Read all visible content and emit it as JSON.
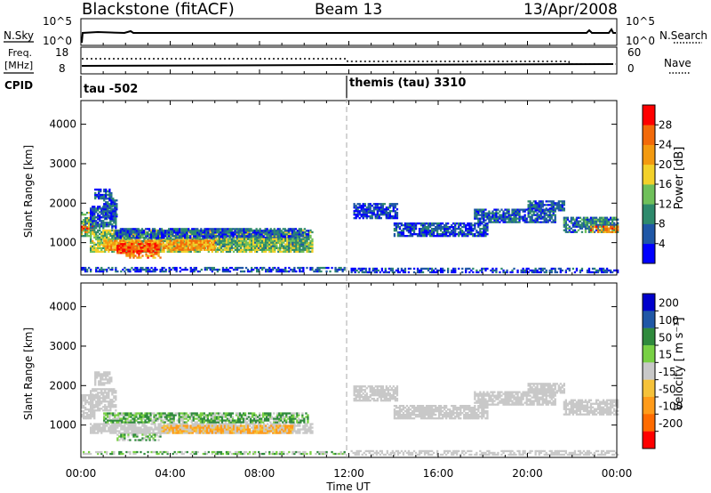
{
  "header": {
    "title": "Blackstone (fitACF)",
    "beam": "Beam 13",
    "date": "13/Apr/2008"
  },
  "noise_panel": {
    "left_label": "N.Sky",
    "left_ticks": [
      "10^5",
      "10^0"
    ],
    "right_ticks": [
      "10^5",
      "10^0"
    ],
    "right_label": "N.Search"
  },
  "freq_panel": {
    "left_label_1": "Freq.",
    "left_label_2": "[MHz]",
    "left_ticks": [
      "18",
      "8"
    ],
    "right_ticks": [
      "60",
      "0"
    ],
    "right_label": "Nave"
  },
  "cpid_panel": {
    "label": "CPID",
    "mode_1": "tau -502",
    "mode_2": "themis (tau) 3310"
  },
  "colors": {
    "power_scale": [
      "#0000ff",
      "#1f57a6",
      "#2e8a6c",
      "#6fc05a",
      "#f3d12a",
      "#f39a10",
      "#f26a0a",
      "#ff0000"
    ],
    "velocity_scale": [
      "#ff0000",
      "#ff6b00",
      "#ff9b1a",
      "#f5c23a",
      "#c8c8c8",
      "#78d044",
      "#2f8a3c",
      "#1f57a6",
      "#0000cc"
    ],
    "ground_scatter": "#c8c8c8"
  },
  "chart_data": [
    {
      "type": "heatmap",
      "name": "Power",
      "title": "",
      "ylabel": "Slant Range [km]",
      "ylim": [
        180,
        4600
      ],
      "y_ticks": [
        1000,
        2000,
        3000,
        4000
      ],
      "xlim": [
        0,
        24
      ],
      "colorbar": {
        "label": "Power [dB]",
        "ticks": [
          "4",
          "8",
          "12",
          "16",
          "20",
          "24",
          "28"
        ],
        "range": [
          0,
          30
        ]
      },
      "regions": [
        {
          "t0": 0.0,
          "t1": 0.6,
          "r0": 1150,
          "r1": 1750,
          "value": 12
        },
        {
          "t0": 0.0,
          "t1": 0.5,
          "r0": 1250,
          "r1": 1400,
          "value": 24
        },
        {
          "t0": 0.6,
          "t1": 1.4,
          "r0": 2100,
          "r1": 2350,
          "value": 5
        },
        {
          "t0": 0.4,
          "t1": 1.6,
          "r0": 1350,
          "r1": 1900,
          "value": 6
        },
        {
          "t0": 1.0,
          "t1": 1.6,
          "r0": 1600,
          "r1": 2100,
          "value": 6
        },
        {
          "t0": 0.4,
          "t1": 10.4,
          "r0": 750,
          "r1": 1300,
          "value": 14
        },
        {
          "t0": 1.5,
          "t1": 10.2,
          "r0": 1100,
          "r1": 1350,
          "value": 6
        },
        {
          "t0": 1.0,
          "t1": 6.0,
          "r0": 800,
          "r1": 1050,
          "value": 21
        },
        {
          "t0": 1.6,
          "t1": 3.6,
          "r0": 720,
          "r1": 980,
          "value": 26
        },
        {
          "t0": 2.0,
          "t1": 3.6,
          "r0": 600,
          "r1": 720,
          "value": 22
        },
        {
          "t0": 6.0,
          "t1": 10.2,
          "r0": 800,
          "r1": 1100,
          "value": 12
        },
        {
          "t0": 0.0,
          "t1": 11.8,
          "r0": 250,
          "r1": 350,
          "value": 5
        },
        {
          "t0": 12.2,
          "t1": 14.2,
          "r0": 1600,
          "r1": 2000,
          "value": 4
        },
        {
          "t0": 14.0,
          "t1": 18.2,
          "r0": 1150,
          "r1": 1500,
          "value": 5
        },
        {
          "t0": 17.6,
          "t1": 21.2,
          "r0": 1500,
          "r1": 1850,
          "value": 6
        },
        {
          "t0": 20.0,
          "t1": 21.6,
          "r0": 1800,
          "r1": 2050,
          "value": 6
        },
        {
          "t0": 21.6,
          "t1": 24.0,
          "r0": 1250,
          "r1": 1650,
          "value": 8
        },
        {
          "t0": 22.8,
          "t1": 24.0,
          "r0": 1250,
          "r1": 1400,
          "value": 22
        },
        {
          "t0": 12.0,
          "t1": 24.0,
          "r0": 230,
          "r1": 330,
          "value": 4
        }
      ]
    },
    {
      "type": "heatmap",
      "name": "Velocity",
      "title": "",
      "ylabel": "Slant Range [km]",
      "xlabel": "Time UT",
      "ylim": [
        180,
        4600
      ],
      "y_ticks": [
        1000,
        2000,
        3000,
        4000
      ],
      "xlim": [
        0,
        24
      ],
      "x_ticks": [
        "00:00",
        "04:00",
        "08:00",
        "12:00",
        "16:00",
        "20:00",
        "00:00"
      ],
      "colorbar": {
        "label": "Velocity [ m s⁻¹]",
        "ticks": [
          "200",
          "100",
          "50",
          "15",
          "-15",
          "-50",
          "-100",
          "-200"
        ]
      },
      "regions": [
        {
          "t0": 0.0,
          "t1": 0.6,
          "r0": 1150,
          "r1": 1750,
          "value": "gs"
        },
        {
          "t0": 0.6,
          "t1": 1.4,
          "r0": 2000,
          "r1": 2350,
          "value": "gs"
        },
        {
          "t0": 0.4,
          "t1": 1.6,
          "r0": 1350,
          "r1": 1900,
          "value": "gs"
        },
        {
          "t0": 0.4,
          "t1": 10.4,
          "r0": 780,
          "r1": 1020,
          "value": "gs"
        },
        {
          "t0": 1.0,
          "t1": 10.2,
          "r0": 1050,
          "r1": 1300,
          "value": 30
        },
        {
          "t0": 1.6,
          "t1": 3.6,
          "r0": 600,
          "r1": 780,
          "value": 25
        },
        {
          "t0": 3.6,
          "t1": 9.6,
          "r0": 780,
          "r1": 1000,
          "value": -30
        },
        {
          "t0": 0.0,
          "t1": 11.8,
          "r0": 250,
          "r1": 330,
          "value": 20
        },
        {
          "t0": 12.2,
          "t1": 14.2,
          "r0": 1600,
          "r1": 2000,
          "value": "gs"
        },
        {
          "t0": 14.0,
          "t1": 18.2,
          "r0": 1150,
          "r1": 1500,
          "value": "gs"
        },
        {
          "t0": 17.6,
          "t1": 21.2,
          "r0": 1500,
          "r1": 1850,
          "value": "gs"
        },
        {
          "t0": 20.0,
          "t1": 21.6,
          "r0": 1800,
          "r1": 2050,
          "value": "gs"
        },
        {
          "t0": 21.6,
          "t1": 24.0,
          "r0": 1250,
          "r1": 1650,
          "value": "gs"
        },
        {
          "t0": 12.0,
          "t1": 24.0,
          "r0": 230,
          "r1": 330,
          "value": "gs"
        }
      ]
    }
  ]
}
